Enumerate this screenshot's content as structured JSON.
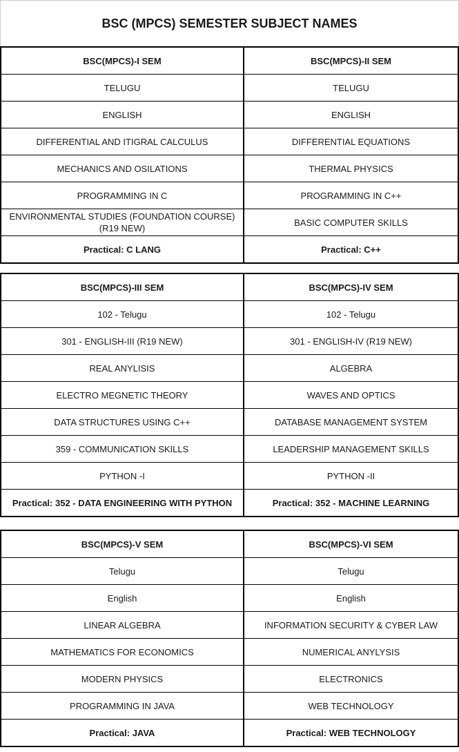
{
  "title": "BSC (MPCS) SEMESTER SUBJECT NAMES",
  "tables": [
    {
      "rows": [
        [
          "BSC(MPCS)-I SEM",
          "BSC(MPCS)-II SEM"
        ],
        [
          "TELUGU",
          "TELUGU"
        ],
        [
          "ENGLISH",
          "ENGLISH"
        ],
        [
          "DIFFERENTIAL AND ITIGRAL CALCULUS",
          "DIFFERENTIAL EQUATIONS"
        ],
        [
          "MECHANICS AND OSILATIONS",
          "THERMAL PHYSICS"
        ],
        [
          "PROGRAMMING IN C",
          "PROGRAMMING IN C++"
        ],
        [
          "ENVIRONMENTAL STUDIES (FOUNDATION COURSE) (R19 NEW)",
          "BASIC COMPUTER SKILLS"
        ],
        [
          "Practical: C LANG",
          "Practical: C++"
        ]
      ]
    },
    {
      "rows": [
        [
          "BSC(MPCS)-III SEM",
          "BSC(MPCS)-IV SEM"
        ],
        [
          "102 - Telugu",
          "102 - Telugu"
        ],
        [
          "301 - ENGLISH-III (R19 NEW)",
          "301 - ENGLISH-IV (R19 NEW)"
        ],
        [
          "REAL ANYLISIS",
          "ALGEBRA"
        ],
        [
          "ELECTRO MEGNETIC THEORY",
          "WAVES AND OPTICS"
        ],
        [
          "DATA STRUCTURES USING C++",
          "DATABASE MANAGEMENT SYSTEM"
        ],
        [
          "359 - COMMUNICATION SKILLS",
          "LEADERSHIP MANAGEMENT SKILLS"
        ],
        [
          "PYTHON -I",
          "PYTHON -II"
        ],
        [
          "Practical: 352 - DATA ENGINEERING WITH PYTHON",
          "Practical: 352 - MACHINE LEARNING"
        ]
      ]
    },
    {
      "rows": [
        [
          "BSC(MPCS)-V SEM",
          "BSC(MPCS)-VI SEM"
        ],
        [
          "Telugu",
          "Telugu"
        ],
        [
          "English",
          "English"
        ],
        [
          "LINEAR ALGEBRA",
          "INFORMATION SECURITY & CYBER LAW"
        ],
        [
          "MATHEMATICS FOR ECONOMICS",
          "NUMERICAL ANYLYSIS"
        ],
        [
          "MODERN PHYSICS",
          "ELECTRONICS"
        ],
        [
          "PROGRAMMING IN JAVA",
          "WEB TECHNOLOGY"
        ],
        [
          "Practical: JAVA",
          "Practical: WEB TECHNOLOGY"
        ]
      ]
    }
  ]
}
